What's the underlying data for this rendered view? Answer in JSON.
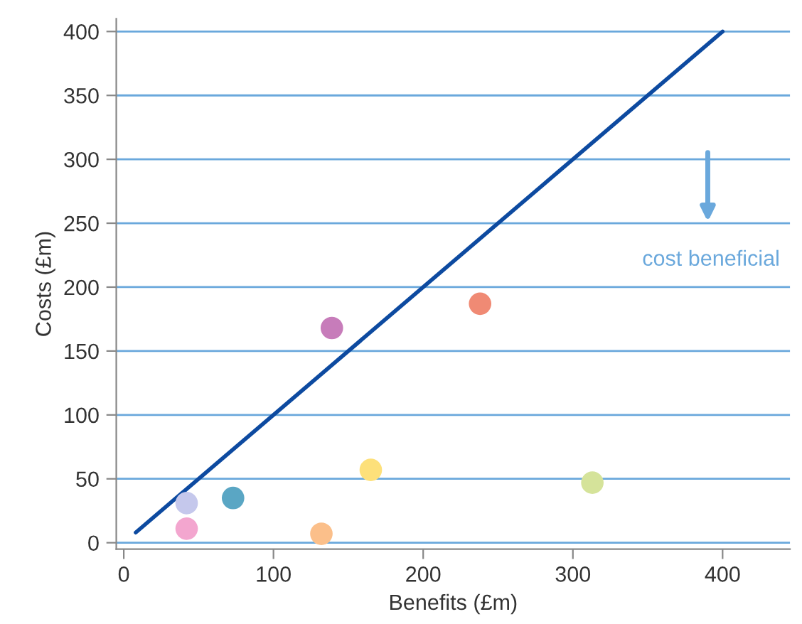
{
  "chart_data": [
    {
      "type": "scatter",
      "xlabel": "Benefits (£m)",
      "ylabel": "Costs (£m)",
      "xlim": [
        -5,
        445
      ],
      "ylim": [
        -5,
        410
      ],
      "xticks": [
        0,
        100,
        200,
        300,
        400
      ],
      "yticks": [
        0,
        50,
        100,
        150,
        200,
        250,
        300,
        350,
        400
      ],
      "grid": "y",
      "series": [
        {
          "marker": "circle",
          "x": [
            42,
            42,
            73,
            139,
            132,
            165,
            238,
            313
          ],
          "values": [
            31,
            11,
            35,
            168,
            7,
            57,
            187,
            47
          ],
          "colors": [
            "#c5c8ec",
            "#f3a6cf",
            "#5aa6c4",
            "#c77cba",
            "#fbbf8a",
            "#fde07a",
            "#f08a74",
            "#d5e39a"
          ]
        },
        {
          "type": "line",
          "x": [
            8,
            400
          ],
          "values": [
            8,
            400
          ],
          "color": "#0d4aa0"
        }
      ],
      "annotations": [
        "cost beneficial"
      ]
    }
  ]
}
